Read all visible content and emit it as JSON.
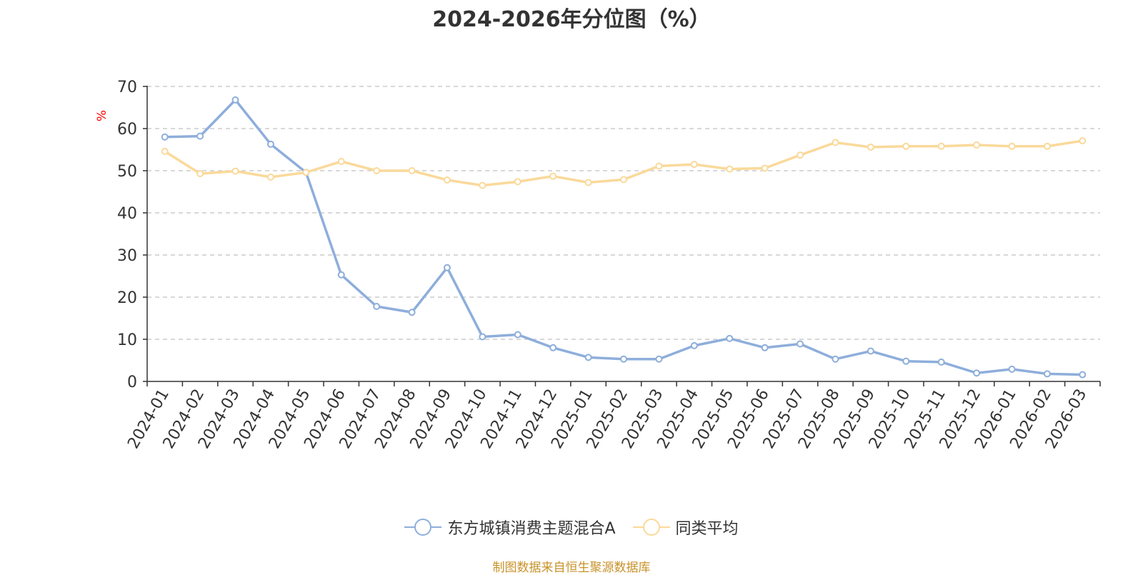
{
  "title": "2024-2026年分位图（%）",
  "source": "制图数据来自恒生聚源数据库",
  "chart_data": {
    "type": "line",
    "ylabel": "%",
    "ylim": [
      0,
      70
    ],
    "yticks": [
      0,
      10,
      20,
      30,
      40,
      50,
      60,
      70
    ],
    "grid": "horizontal-dashed",
    "legend_position": "bottom-center",
    "categories": [
      "2024-01",
      "2024-02",
      "2024-03",
      "2024-04",
      "2024-05",
      "2024-06",
      "2024-07",
      "2024-08",
      "2024-09",
      "2024-10",
      "2024-11",
      "2024-12",
      "2025-01",
      "2025-02",
      "2025-03",
      "2025-04",
      "2025-05",
      "2025-06",
      "2025-07",
      "2025-08",
      "2025-09",
      "2025-10",
      "2025-11",
      "2025-12",
      "2026-01",
      "2026-02",
      "2026-03"
    ],
    "series": [
      {
        "name": "东方城镇消费主题混合A",
        "color": "#8eaedb",
        "values": [
          58.0,
          58.2,
          66.8,
          56.3,
          49.6,
          25.3,
          17.8,
          16.4,
          27.0,
          10.6,
          11.1,
          8.0,
          5.7,
          5.3,
          5.3,
          8.5,
          10.2,
          8.0,
          8.9,
          5.3,
          7.2,
          4.8,
          4.6,
          2.0,
          2.9,
          1.8,
          1.6
        ]
      },
      {
        "name": "同类平均",
        "color": "#fad99a",
        "values": [
          54.6,
          49.3,
          49.9,
          48.5,
          49.6,
          52.2,
          50.0,
          50.0,
          47.8,
          46.5,
          47.4,
          48.7,
          47.2,
          47.9,
          51.1,
          51.5,
          50.4,
          50.6,
          53.7,
          56.7,
          55.6,
          55.8,
          55.8,
          56.1,
          55.8,
          55.8,
          57.1
        ]
      }
    ]
  }
}
